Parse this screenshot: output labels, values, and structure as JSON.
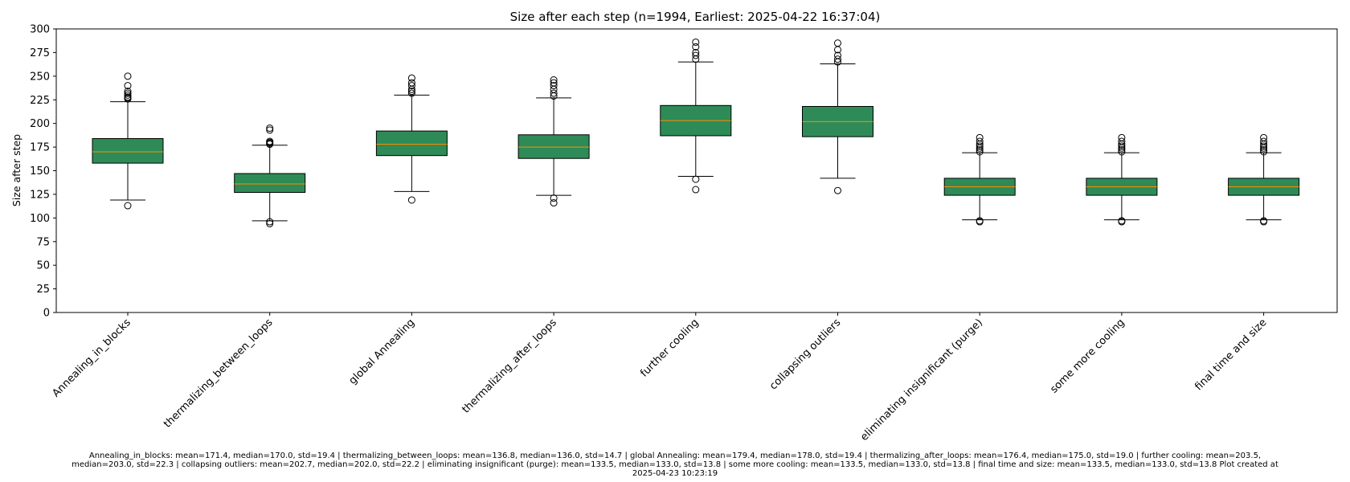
{
  "chart_data": {
    "type": "box",
    "title": "Size after each step (n=1994, Earliest: 2025-04-22 16:37:04)",
    "xlabel": "",
    "ylabel": "Size after step",
    "ylim": [
      0,
      300
    ],
    "yticks": [
      0,
      25,
      50,
      75,
      100,
      125,
      150,
      175,
      200,
      225,
      250,
      275,
      300
    ],
    "grid": false,
    "colors": {
      "box_fill": "#2e8b57",
      "median": "#ff8c00",
      "stroke": "#000000"
    },
    "categories": [
      "Annealing_in_blocks",
      "thermalizing_between_loops",
      "global Annealing",
      "thermalizing_after_loops",
      "further cooling",
      "collapsing outliers",
      "eliminating insignificant (purge)",
      "some more cooling",
      "final time and size"
    ],
    "boxes": [
      {
        "whislo": 119,
        "q1": 158,
        "median": 170,
        "q3": 184,
        "whishi": 223,
        "fliers": [
          113,
          226,
          227,
          228,
          230,
          232,
          234,
          240,
          250
        ]
      },
      {
        "whislo": 97,
        "q1": 127,
        "median": 136,
        "q3": 147,
        "whishi": 177,
        "fliers": [
          94,
          96,
          178,
          179,
          180,
          181,
          193,
          195
        ]
      },
      {
        "whislo": 128,
        "q1": 166,
        "median": 178,
        "q3": 192,
        "whishi": 230,
        "fliers": [
          119,
          232,
          234,
          236,
          240,
          243,
          248
        ]
      },
      {
        "whislo": 124,
        "q1": 163,
        "median": 175,
        "q3": 188,
        "whishi": 227,
        "fliers": [
          116,
          121,
          229,
          232,
          236,
          240,
          243,
          246
        ]
      },
      {
        "whislo": 144,
        "q1": 187,
        "median": 203,
        "q3": 219,
        "whishi": 265,
        "fliers": [
          130,
          141,
          268,
          272,
          275,
          281,
          286
        ]
      },
      {
        "whislo": 142,
        "q1": 186,
        "median": 202,
        "q3": 218,
        "whishi": 263,
        "fliers": [
          129,
          265,
          268,
          272,
          278,
          285
        ]
      },
      {
        "whislo": 98,
        "q1": 124,
        "median": 133,
        "q3": 142,
        "whishi": 169,
        "fliers": [
          96,
          97,
          170,
          172,
          174,
          176,
          178,
          181,
          185
        ]
      },
      {
        "whislo": 98,
        "q1": 124,
        "median": 133,
        "q3": 142,
        "whishi": 169,
        "fliers": [
          96,
          97,
          170,
          172,
          174,
          176,
          178,
          181,
          185
        ]
      },
      {
        "whislo": 98,
        "q1": 124,
        "median": 133,
        "q3": 142,
        "whishi": 169,
        "fliers": [
          96,
          97,
          170,
          172,
          174,
          176,
          178,
          181,
          185
        ]
      }
    ]
  },
  "footer": {
    "line1": "Annealing_in_blocks: mean=171.4, median=170.0, std=19.4 | thermalizing_between_loops: mean=136.8, median=136.0, std=14.7 | global Annealing: mean=179.4, median=178.0, std=19.4 | thermalizing_after_loops: mean=176.4, median=175.0, std=19.0 | further cooling: mean=203.5,",
    "line2": "median=203.0, std=22.3 | collapsing outliers: mean=202.7, median=202.0, std=22.2 | eliminating insignificant (purge): mean=133.5, median=133.0, std=13.8 | some more cooling: mean=133.5, median=133.0, std=13.8 | final time and size: mean=133.5, median=133.0, std=13.8    Plot created at",
    "line3": "2025-04-23 10:23:19"
  }
}
